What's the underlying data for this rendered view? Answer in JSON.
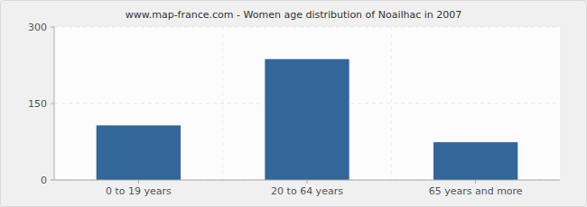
{
  "chart_data": {
    "type": "bar",
    "title": "www.map-france.com - Women age distribution of Noailhac in 2007",
    "categories": [
      "0 to 19 years",
      "20 to 64 years",
      "65 years and more"
    ],
    "values": [
      107,
      237,
      74
    ],
    "color": "#336699",
    "ylim": [
      0,
      300
    ],
    "yticks": [
      0,
      150,
      300
    ],
    "grid": true
  }
}
